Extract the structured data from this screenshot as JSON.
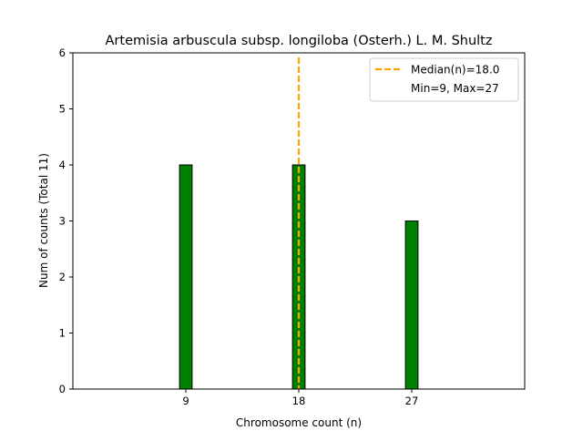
{
  "chart_data": {
    "type": "bar",
    "title": "Artemisia arbuscula subsp. longiloba (Osterh.) L. M. Shultz",
    "xlabel": "Chromosome count (n)",
    "ylabel": "Num of counts     (Total 11)",
    "categories": [
      9,
      18,
      27
    ],
    "values": [
      4,
      4,
      3
    ],
    "xlim": [
      0,
      36
    ],
    "ylim": [
      0,
      6
    ],
    "xticks": [
      9,
      18,
      27
    ],
    "yticks": [
      0,
      1,
      2,
      3,
      4,
      5,
      6
    ],
    "bar_width": 1,
    "bar_color": "#008000",
    "bar_edge_color": "#000000",
    "median": 18.0,
    "median_color": "#FFA500",
    "grid": false,
    "legend": {
      "position": "top-right",
      "entries": [
        "Median(n)=18.0",
        "Min=9, Max=27"
      ]
    }
  }
}
